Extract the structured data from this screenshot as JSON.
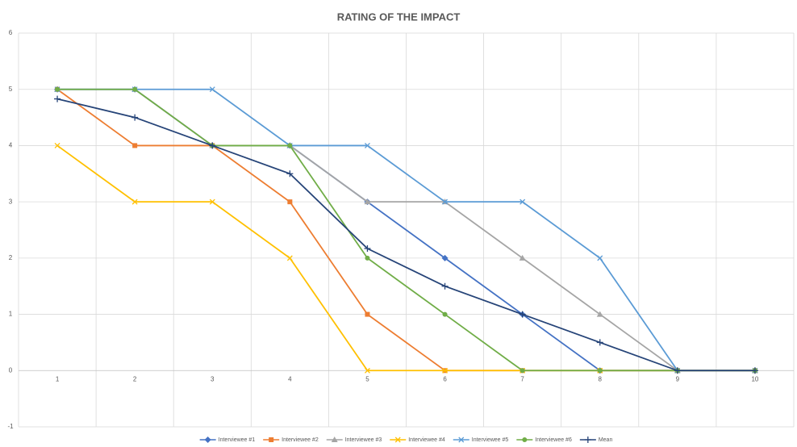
{
  "chart_data": {
    "type": "line",
    "title": "RATING OF THE IMPACT",
    "categories": [
      "1",
      "2",
      "3",
      "4",
      "5",
      "6",
      "7",
      "8",
      "9",
      "10"
    ],
    "ylim": [
      -1,
      6
    ],
    "yticks": [
      -1,
      0,
      1,
      2,
      3,
      4,
      5,
      6
    ],
    "grid": true,
    "legend": "bottom",
    "series": [
      {
        "name": "Interviewee #1",
        "color": "#4472c4",
        "marker": "diamond",
        "values": [
          5,
          5,
          4,
          4,
          3,
          2,
          1,
          0,
          0,
          0
        ]
      },
      {
        "name": "Interviewee #2",
        "color": "#ed7d31",
        "marker": "square",
        "values": [
          5,
          4,
          4,
          3,
          1,
          0,
          0,
          0,
          0,
          0
        ]
      },
      {
        "name": "Interviewee #3",
        "color": "#a5a5a5",
        "marker": "triangle",
        "values": [
          5,
          5,
          4,
          4,
          3,
          3,
          2,
          1,
          0,
          0
        ]
      },
      {
        "name": "Interviewee #4",
        "color": "#ffc000",
        "marker": "x",
        "values": [
          4,
          3,
          3,
          2,
          0,
          0,
          0,
          0,
          0,
          0
        ]
      },
      {
        "name": "Interviewee #5",
        "color": "#5b9bd5",
        "marker": "x",
        "values": [
          5,
          5,
          5,
          4,
          4,
          3,
          3,
          2,
          0,
          0
        ]
      },
      {
        "name": "Interviewee #6",
        "color": "#70ad47",
        "marker": "circle",
        "values": [
          5,
          5,
          4,
          4,
          2,
          1,
          0,
          0,
          0,
          0
        ]
      },
      {
        "name": "Mean",
        "color": "#264478",
        "marker": "plus",
        "values": [
          4.83,
          4.5,
          4,
          3.5,
          2.17,
          1.5,
          1,
          0.5,
          0,
          0
        ]
      }
    ]
  }
}
